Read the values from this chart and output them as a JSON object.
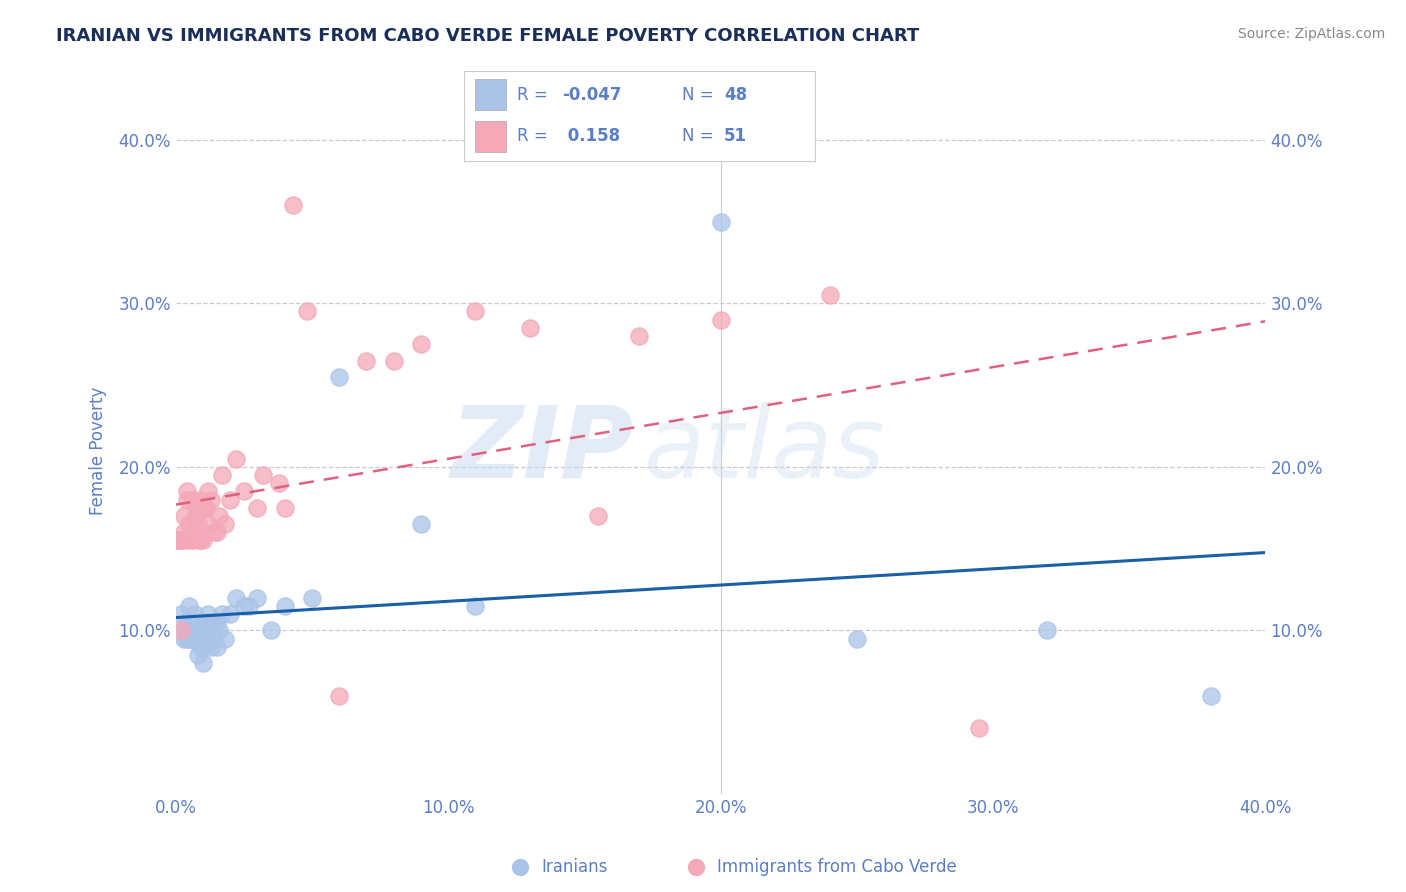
{
  "title": "IRANIAN VS IMMIGRANTS FROM CABO VERDE FEMALE POVERTY CORRELATION CHART",
  "source": "Source: ZipAtlas.com",
  "ylabel": "Female Poverty",
  "xlim": [
    0.0,
    0.4
  ],
  "ylim": [
    0.0,
    0.42
  ],
  "xtick_vals": [
    0.0,
    0.1,
    0.2,
    0.3,
    0.4
  ],
  "ytick_vals": [
    0.1,
    0.2,
    0.3,
    0.4
  ],
  "title_color": "#1a2e5a",
  "axis_color": "#5b7ec8",
  "watermark_zip": "ZIP",
  "watermark_atlas": "atlas",
  "iranians_color": "#aac4e8",
  "cabo_verde_color": "#f4a8b8",
  "iranians_line_color": "#1a5fa8",
  "cabo_verde_line_color": "#e06080",
  "legend_R_iranians": "-0.047",
  "legend_N_iranians": "48",
  "legend_R_cabo": "0.158",
  "legend_N_cabo": "51",
  "iranians_x": [
    0.001,
    0.002,
    0.003,
    0.003,
    0.004,
    0.004,
    0.005,
    0.005,
    0.005,
    0.006,
    0.006,
    0.006,
    0.007,
    0.007,
    0.008,
    0.008,
    0.009,
    0.009,
    0.01,
    0.01,
    0.01,
    0.011,
    0.011,
    0.012,
    0.012,
    0.013,
    0.013,
    0.014,
    0.015,
    0.015,
    0.016,
    0.017,
    0.018,
    0.02,
    0.022,
    0.025,
    0.027,
    0.03,
    0.035,
    0.04,
    0.05,
    0.06,
    0.09,
    0.11,
    0.2,
    0.25,
    0.32,
    0.38
  ],
  "iranians_y": [
    0.155,
    0.11,
    0.095,
    0.1,
    0.095,
    0.105,
    0.095,
    0.1,
    0.115,
    0.095,
    0.1,
    0.105,
    0.095,
    0.11,
    0.085,
    0.095,
    0.09,
    0.105,
    0.08,
    0.09,
    0.1,
    0.095,
    0.105,
    0.095,
    0.11,
    0.09,
    0.105,
    0.095,
    0.09,
    0.105,
    0.1,
    0.11,
    0.095,
    0.11,
    0.12,
    0.115,
    0.115,
    0.12,
    0.1,
    0.115,
    0.12,
    0.255,
    0.165,
    0.115,
    0.35,
    0.095,
    0.1,
    0.06
  ],
  "cabo_verde_x": [
    0.001,
    0.002,
    0.002,
    0.003,
    0.003,
    0.003,
    0.004,
    0.004,
    0.005,
    0.005,
    0.006,
    0.006,
    0.007,
    0.007,
    0.008,
    0.008,
    0.008,
    0.009,
    0.009,
    0.01,
    0.01,
    0.01,
    0.011,
    0.012,
    0.012,
    0.013,
    0.014,
    0.015,
    0.016,
    0.017,
    0.018,
    0.02,
    0.022,
    0.025,
    0.03,
    0.032,
    0.038,
    0.04,
    0.043,
    0.048,
    0.06,
    0.07,
    0.08,
    0.09,
    0.11,
    0.13,
    0.155,
    0.17,
    0.2,
    0.24,
    0.295
  ],
  "cabo_verde_y": [
    0.155,
    0.155,
    0.1,
    0.155,
    0.16,
    0.17,
    0.185,
    0.18,
    0.155,
    0.165,
    0.18,
    0.155,
    0.17,
    0.16,
    0.155,
    0.165,
    0.175,
    0.18,
    0.155,
    0.155,
    0.175,
    0.175,
    0.175,
    0.165,
    0.185,
    0.18,
    0.16,
    0.16,
    0.17,
    0.195,
    0.165,
    0.18,
    0.205,
    0.185,
    0.175,
    0.195,
    0.19,
    0.175,
    0.36,
    0.295,
    0.06,
    0.265,
    0.265,
    0.275,
    0.295,
    0.285,
    0.17,
    0.28,
    0.29,
    0.305,
    0.04
  ]
}
